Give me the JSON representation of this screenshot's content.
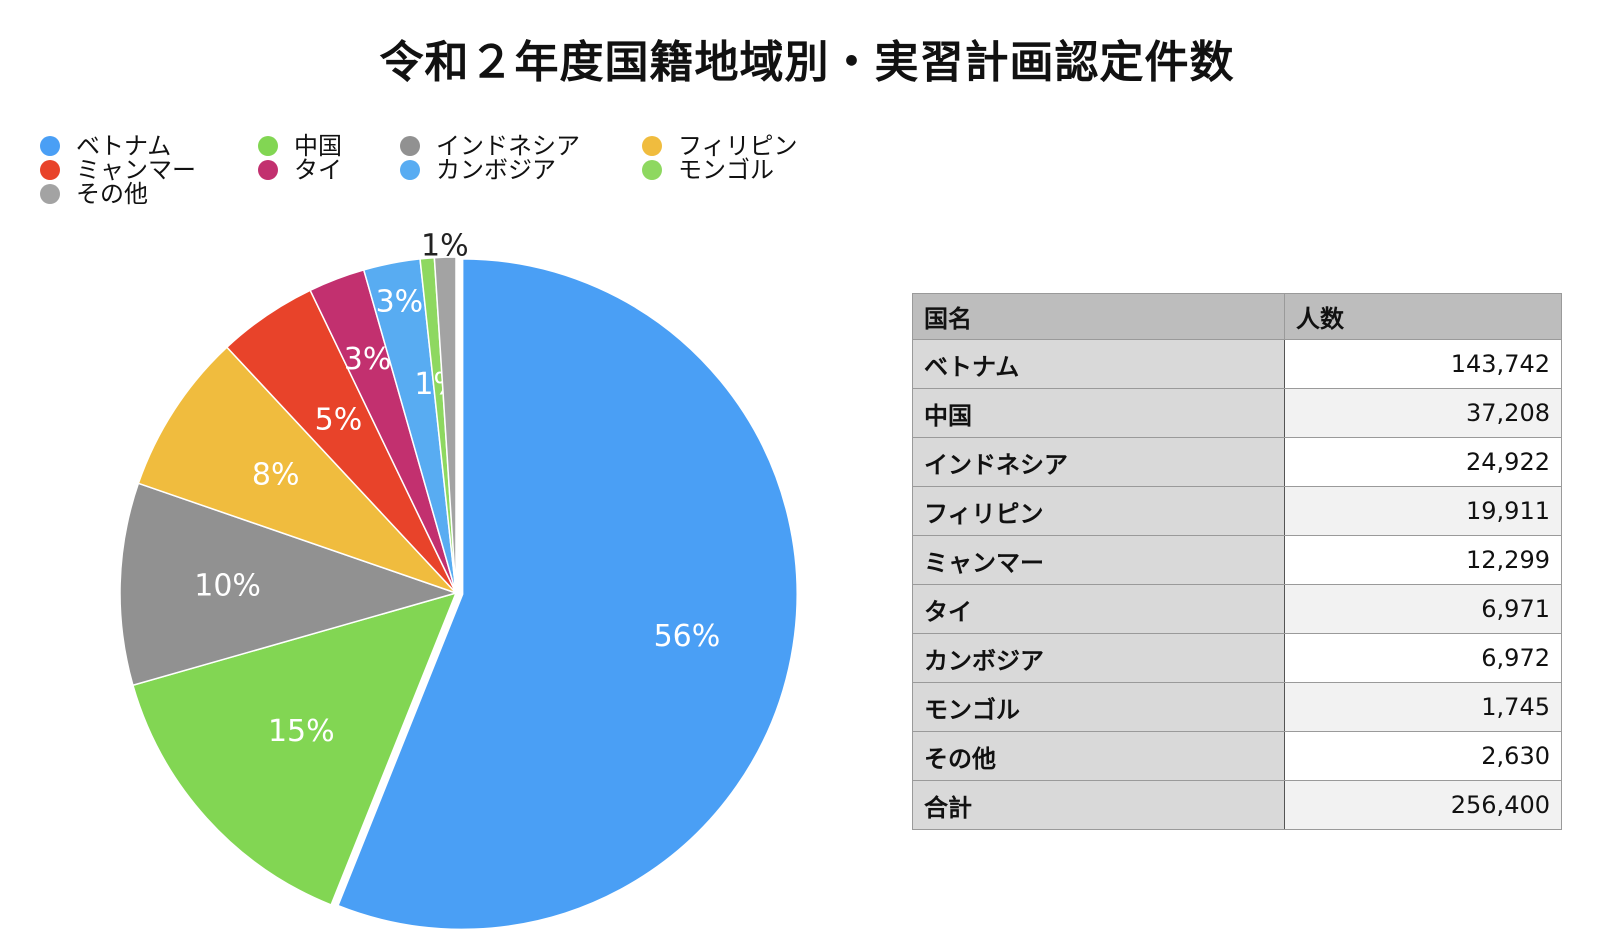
{
  "title": "令和２年度国籍地域別・実習計画認定件数",
  "chart_data": {
    "type": "pie",
    "title": "令和２年度国籍地域別・実習計画認定件数",
    "legend_position": "top-left",
    "slices": [
      {
        "label": "ベトナム",
        "value": 143742,
        "percent_label": "56%",
        "color": "#4a9ff5"
      },
      {
        "label": "中国",
        "value": 37208,
        "percent_label": "15%",
        "color": "#82d653"
      },
      {
        "label": "インドネシア",
        "value": 24922,
        "percent_label": "10%",
        "color": "#919191"
      },
      {
        "label": "フィリピン",
        "value": 19911,
        "percent_label": "8%",
        "color": "#f0bc3e"
      },
      {
        "label": "ミャンマー",
        "value": 12299,
        "percent_label": "5%",
        "color": "#e8432a"
      },
      {
        "label": "タイ",
        "value": 6971,
        "percent_label": "3%",
        "color": "#c2306f"
      },
      {
        "label": "カンボジア",
        "value": 6972,
        "percent_label": "3%",
        "color": "#58acf2"
      },
      {
        "label": "モンゴル",
        "value": 1745,
        "percent_label": "1%",
        "color": "#8ed860"
      },
      {
        "label": "その他",
        "value": 2630,
        "percent_label": "1%",
        "color": "#a3a3a3"
      }
    ]
  },
  "table": {
    "headers": [
      "国名",
      "人数"
    ],
    "rows": [
      {
        "name": "ベトナム",
        "count": "143,742"
      },
      {
        "name": "中国",
        "count": "37,208"
      },
      {
        "name": "インドネシア",
        "count": "24,922"
      },
      {
        "name": "フィリピン",
        "count": "19,911"
      },
      {
        "name": "ミャンマー",
        "count": "12,299"
      },
      {
        "name": "タイ",
        "count": "6,971"
      },
      {
        "name": "カンボジア",
        "count": "6,972"
      },
      {
        "name": "モンゴル",
        "count": "1,745"
      },
      {
        "name": "その他",
        "count": "2,630"
      },
      {
        "name": "合計",
        "count": "256,400"
      }
    ]
  }
}
